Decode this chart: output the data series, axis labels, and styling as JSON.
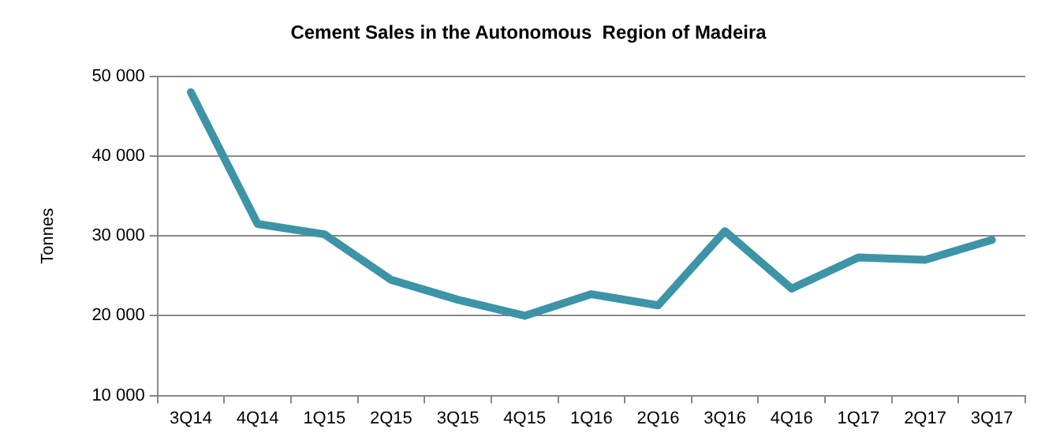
{
  "chart_data": {
    "type": "line",
    "title": "Cement Sales in the Autonomous  Region of Madeira",
    "ylabel": "Tonnes",
    "categories": [
      "3Q14",
      "4Q14",
      "1Q15",
      "2Q15",
      "3Q15",
      "4Q15",
      "1Q16",
      "2Q16",
      "3Q16",
      "4Q16",
      "1Q17",
      "2Q17",
      "3Q17"
    ],
    "series": [
      {
        "color": "#3d94a6",
        "values": [
          48000,
          31500,
          30200,
          24500,
          22000,
          20000,
          22700,
          21300,
          30600,
          23400,
          27300,
          27000,
          29500
        ]
      }
    ],
    "ylim": [
      10000,
      50000
    ],
    "yticks": [
      {
        "value": 10000,
        "label": "10 000"
      },
      {
        "value": 20000,
        "label": "20 000"
      },
      {
        "value": 30000,
        "label": "30 000"
      },
      {
        "value": 40000,
        "label": "40 000"
      },
      {
        "value": 50000,
        "label": "50 000"
      }
    ],
    "grid": "y",
    "legend": false,
    "marker": "none",
    "line_style": "solid"
  }
}
